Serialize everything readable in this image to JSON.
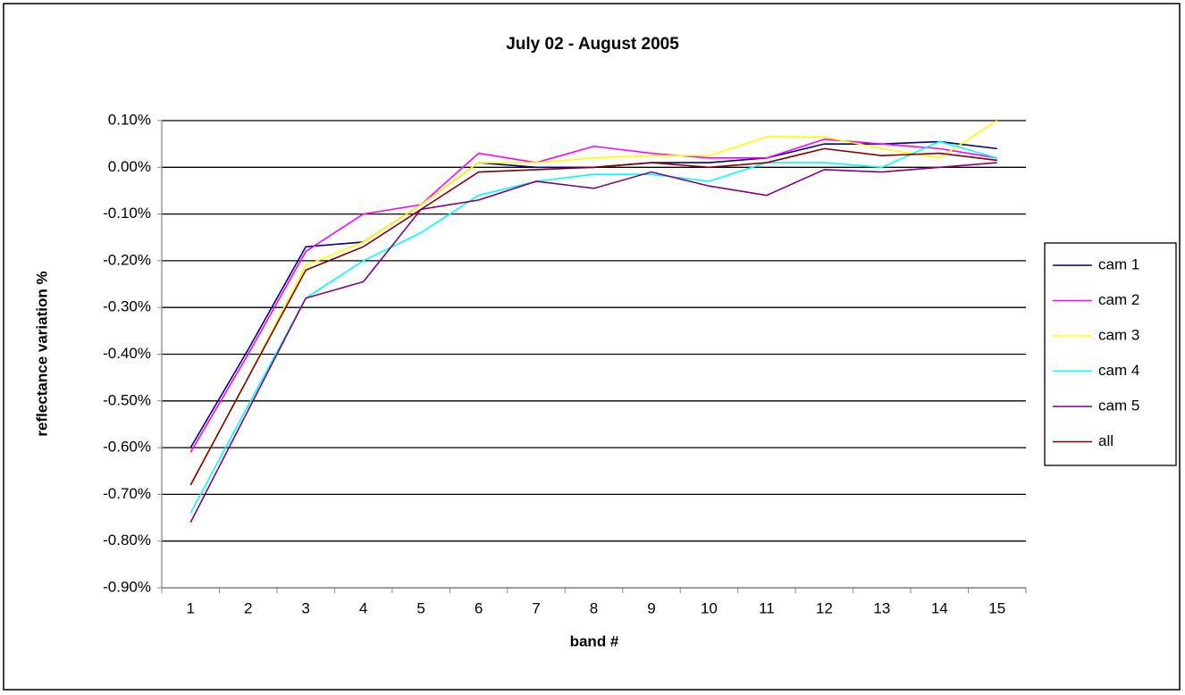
{
  "chart_data": {
    "type": "line",
    "title": "July 02 - August 2005",
    "x_label": "band #",
    "y_label": "reflectance variation %",
    "categories": [
      "1",
      "2",
      "3",
      "4",
      "5",
      "6",
      "7",
      "8",
      "9",
      "10",
      "11",
      "12",
      "13",
      "14",
      "15"
    ],
    "series": [
      {
        "name": "cam 1",
        "color": "#000080",
        "values": [
          -0.6,
          -0.39,
          -0.17,
          -0.16,
          -0.08,
          0.01,
          0.0,
          0.0,
          0.01,
          0.01,
          0.02,
          0.05,
          0.05,
          0.055,
          0.04
        ]
      },
      {
        "name": "cam 2",
        "color": "#ff00ff",
        "values": [
          -0.61,
          -0.4,
          -0.18,
          -0.1,
          -0.08,
          0.03,
          0.01,
          0.045,
          0.03,
          0.02,
          0.02,
          0.06,
          0.05,
          0.04,
          0.02
        ]
      },
      {
        "name": "cam 3",
        "color": "#ffff00",
        "values": [
          -0.68,
          -0.45,
          -0.21,
          -0.16,
          -0.08,
          0.01,
          0.01,
          0.02,
          0.025,
          0.025,
          0.065,
          0.065,
          0.04,
          0.02,
          0.1
        ]
      },
      {
        "name": "cam 4",
        "color": "#00ffff",
        "values": [
          -0.74,
          -0.51,
          -0.28,
          -0.2,
          -0.14,
          -0.06,
          -0.03,
          -0.015,
          -0.015,
          -0.03,
          0.01,
          0.01,
          0.0,
          0.055,
          0.02
        ]
      },
      {
        "name": "cam 5",
        "color": "#800080",
        "values": [
          -0.76,
          -0.52,
          -0.28,
          -0.245,
          -0.09,
          -0.07,
          -0.03,
          -0.045,
          -0.01,
          -0.04,
          -0.06,
          -0.005,
          -0.01,
          0.0,
          0.01
        ]
      },
      {
        "name": "all",
        "color": "#800000",
        "values": [
          -0.68,
          -0.45,
          -0.22,
          -0.17,
          -0.09,
          -0.01,
          -0.005,
          0.0,
          0.01,
          0.0,
          0.01,
          0.04,
          0.025,
          0.03,
          0.015
        ]
      }
    ],
    "ylim": [
      -0.9,
      0.1
    ],
    "yticks": [
      {
        "value": 0.1,
        "label": "0.10%"
      },
      {
        "value": 0,
        "label": "0.00%"
      },
      {
        "value": -0.1,
        "label": "-0.10%"
      },
      {
        "value": -0.2,
        "label": "-0.20%"
      },
      {
        "value": -0.3,
        "label": "-0.30%"
      },
      {
        "value": -0.4,
        "label": "-0.40%"
      },
      {
        "value": -0.5,
        "label": "-0.50%"
      },
      {
        "value": -0.6,
        "label": "-0.60%"
      },
      {
        "value": -0.7,
        "label": "-0.70%"
      },
      {
        "value": -0.8,
        "label": "-0.80%"
      },
      {
        "value": -0.9,
        "label": "-0.90%"
      }
    ],
    "grid": true,
    "legend": "right"
  }
}
